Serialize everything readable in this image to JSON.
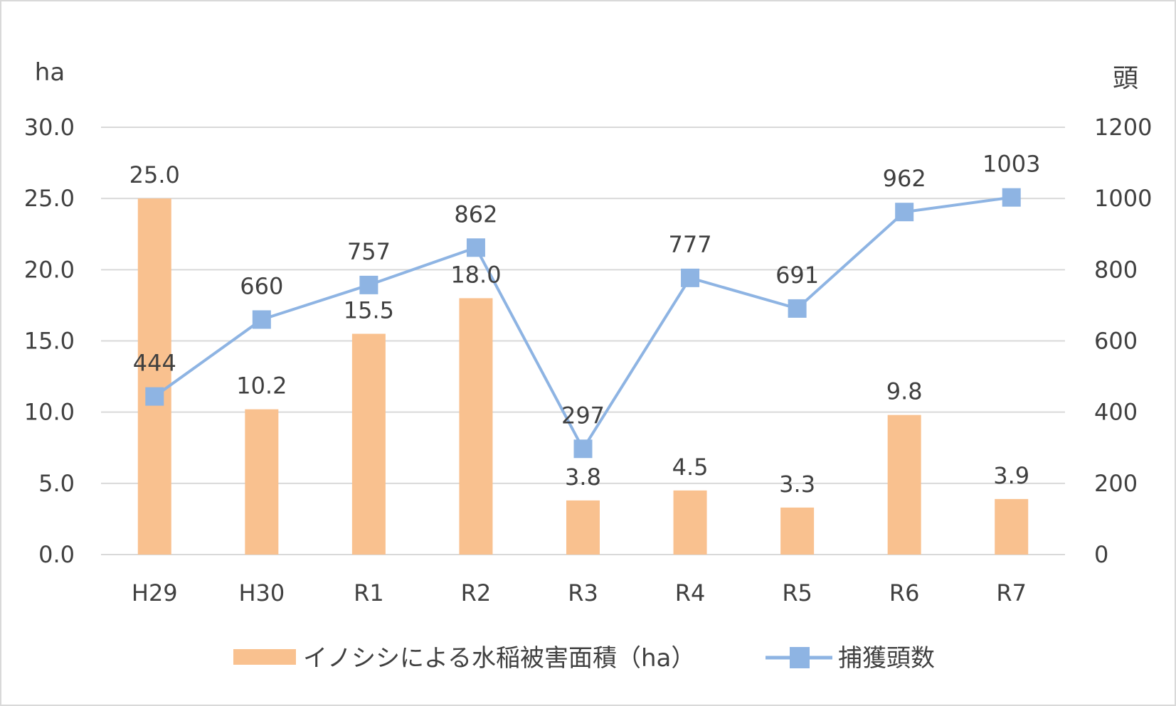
{
  "chart_data": {
    "type": "bar+line",
    "categories": [
      "H29",
      "H30",
      "R1",
      "R2",
      "R3",
      "R4",
      "R5",
      "R6",
      "R7"
    ],
    "series": [
      {
        "name": "イノシシによる水稲被害面積（ha）",
        "type": "bar",
        "axis": "left",
        "color": "#F9C18F",
        "values": [
          25.0,
          10.2,
          15.5,
          18.0,
          3.8,
          4.5,
          3.3,
          9.8,
          3.9
        ],
        "labels": [
          "25.0",
          "10.2",
          "15.5",
          "18.0",
          "3.8",
          "4.5",
          "3.3",
          "9.8",
          "3.9"
        ]
      },
      {
        "name": "捕獲頭数",
        "type": "line",
        "axis": "right",
        "color": "#8EB4E3",
        "marker": "square",
        "values": [
          444,
          660,
          757,
          862,
          297,
          777,
          691,
          962,
          1003
        ],
        "labels": [
          "444",
          "660",
          "757",
          "862",
          "297",
          "777",
          "691",
          "962",
          "1003"
        ]
      }
    ],
    "y_left": {
      "label": "ha",
      "range": [
        0,
        30
      ],
      "ticks": [
        "0.0",
        "5.0",
        "10.0",
        "15.0",
        "20.0",
        "25.0",
        "30.0"
      ]
    },
    "y_right": {
      "label": "頭",
      "range": [
        0,
        1200
      ],
      "ticks": [
        "0",
        "200",
        "400",
        "600",
        "800",
        "1000",
        "1200"
      ]
    },
    "grid": true,
    "legend": "bottom"
  }
}
